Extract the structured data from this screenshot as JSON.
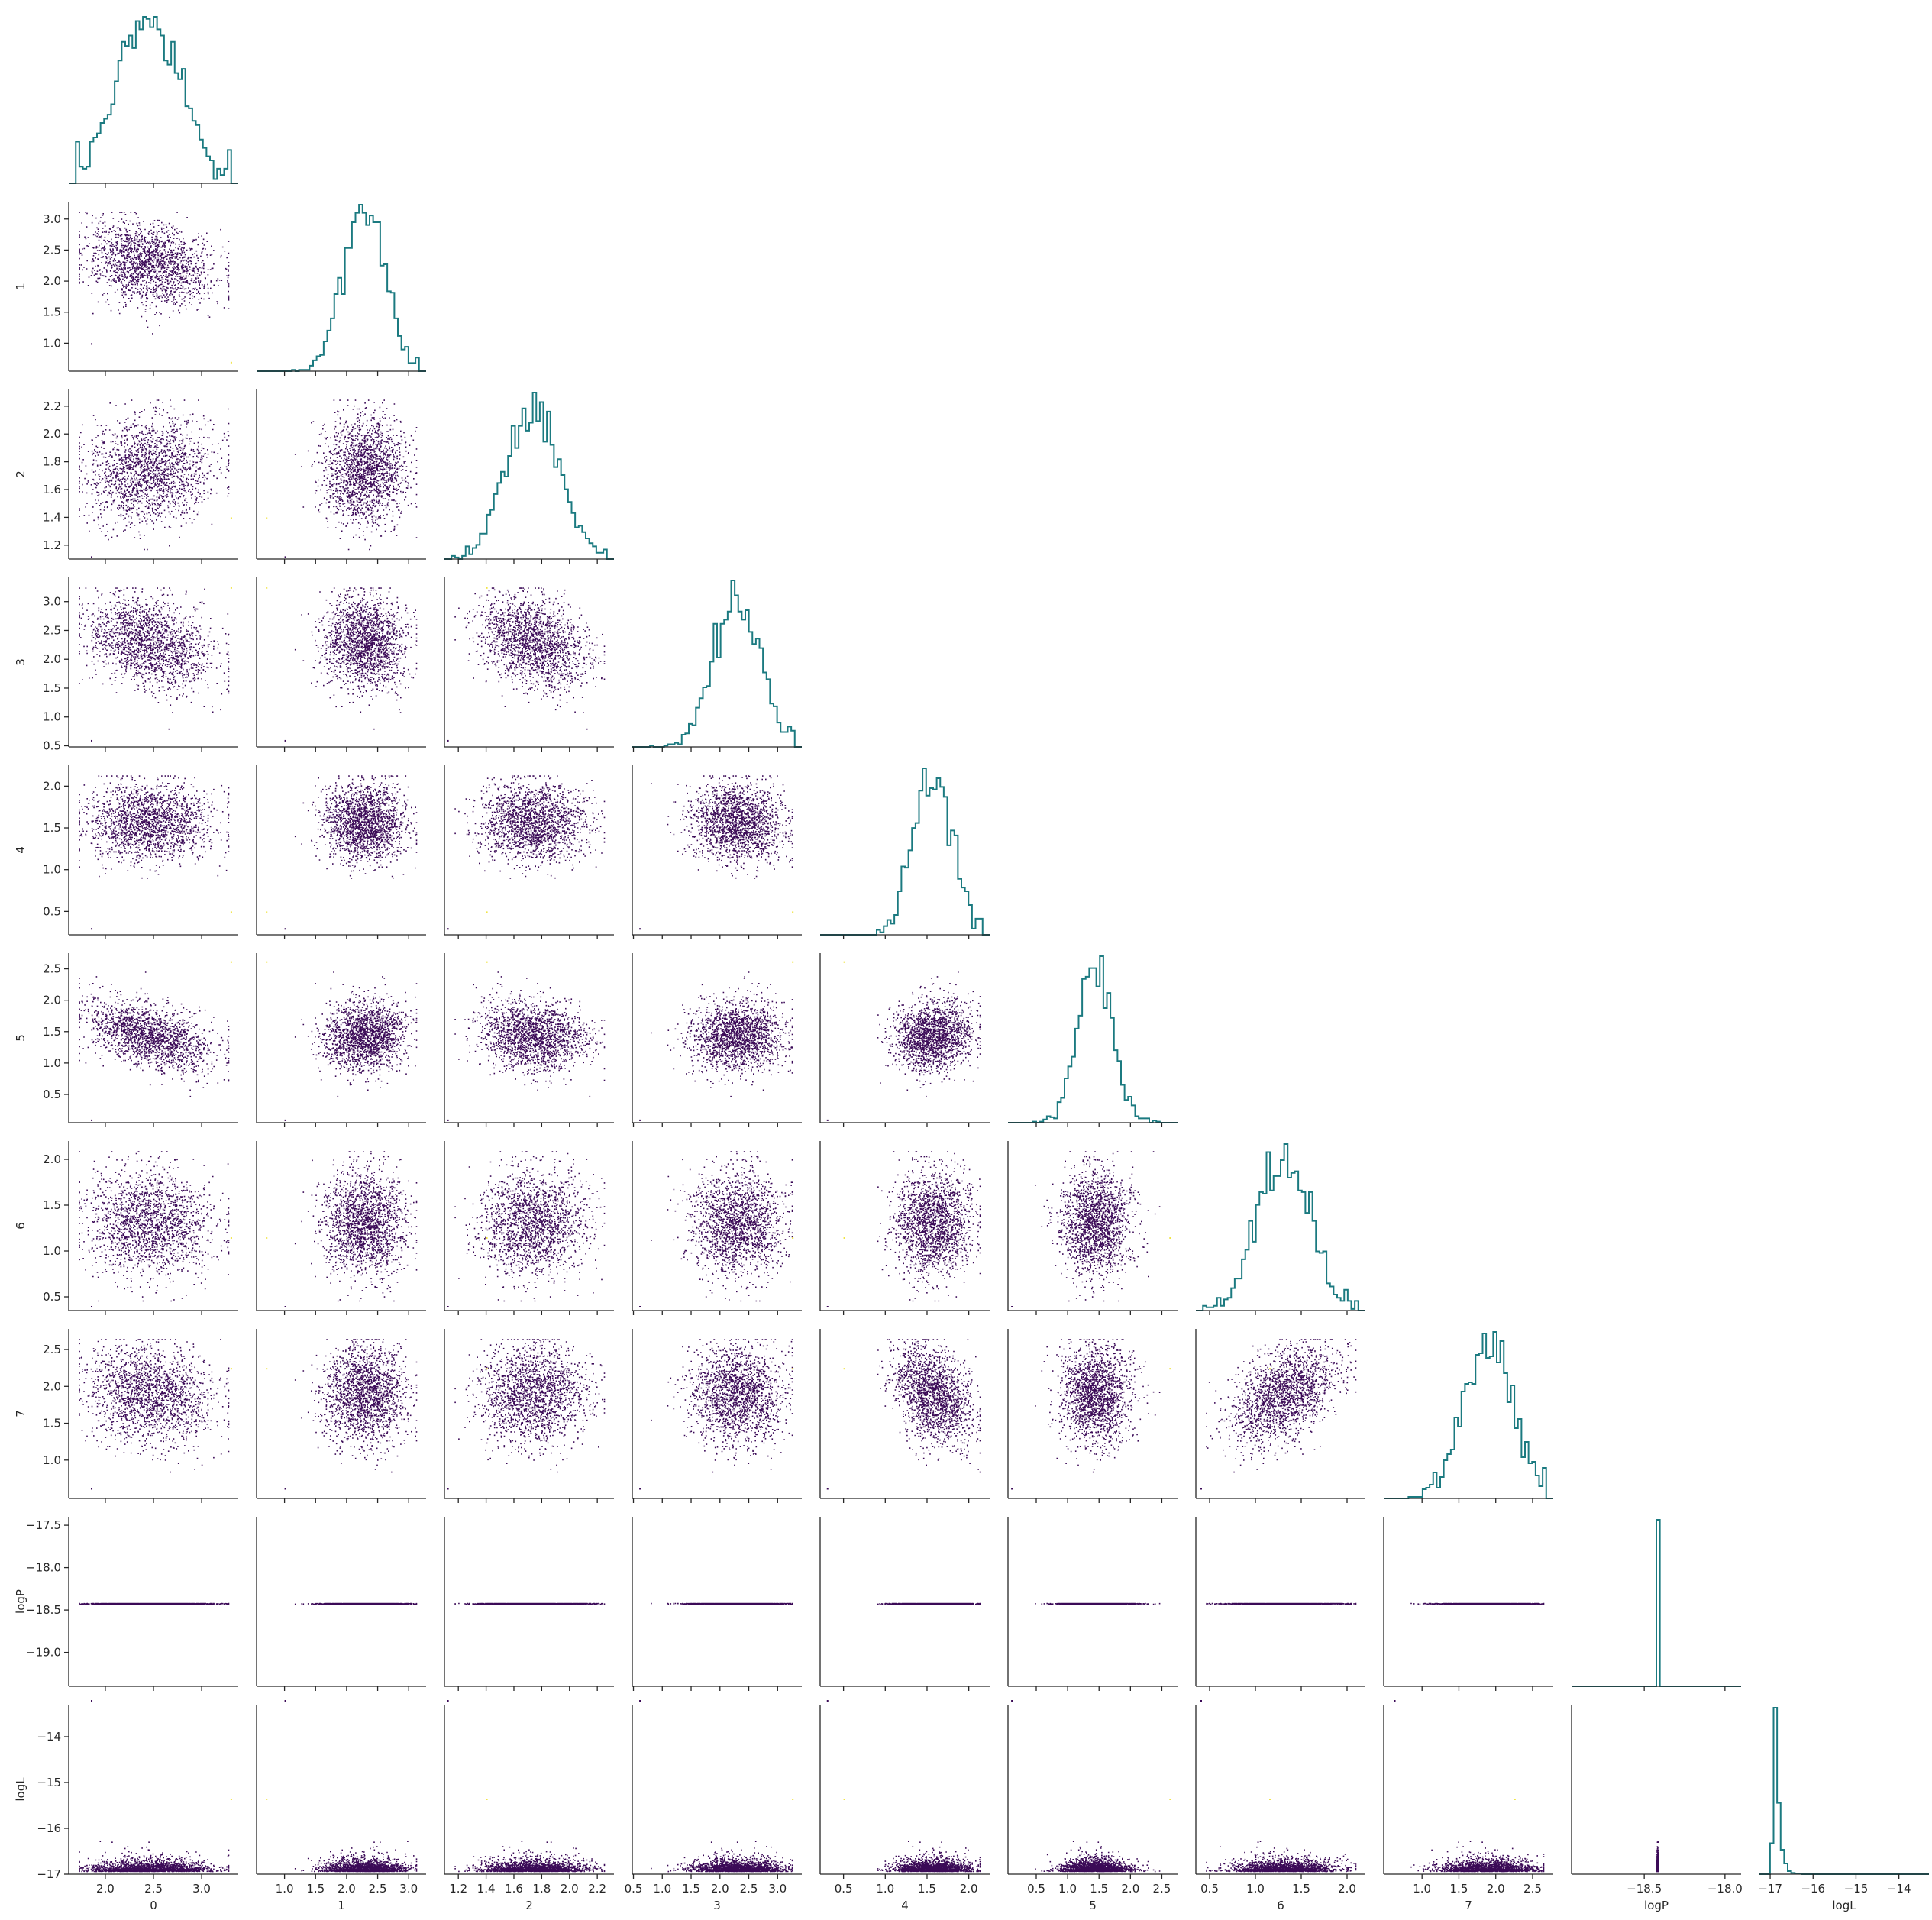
{
  "chart_data": {
    "type": "scatter",
    "layout": "corner-pairplot",
    "colors": {
      "histogram": "#1b7a80",
      "scatter": "#3b0a57",
      "scatter_high": "#f0e442",
      "axes": "#262626"
    },
    "grid": false,
    "legend": "none",
    "variables": [
      {
        "name": "0",
        "label": "0",
        "range": [
          1.62,
          3.38
        ],
        "ticks": [
          "2.0",
          "2.5",
          "3.0"
        ],
        "tick_values": [
          2.0,
          2.5,
          3.0
        ],
        "mean": 2.45,
        "sd": 0.32,
        "hist_peak": 2.5,
        "outliers": [
          1.85,
          3.3
        ]
      },
      {
        "name": "1",
        "label": "1",
        "range": [
          0.55,
          3.28
        ],
        "ticks": [
          "1.0",
          "1.5",
          "2.0",
          "2.5",
          "3.0"
        ],
        "tick_values": [
          1.0,
          1.5,
          2.0,
          2.5,
          3.0
        ],
        "mean": 2.28,
        "sd": 0.32,
        "hist_peak": 2.5,
        "outliers": [
          1.0,
          0.7
        ]
      },
      {
        "name": "2",
        "label": "2",
        "range": [
          1.1,
          2.32
        ],
        "ticks": [
          "1.2",
          "1.4",
          "1.6",
          "1.8",
          "2.0",
          "2.2"
        ],
        "tick_values": [
          1.2,
          1.4,
          1.6,
          1.8,
          2.0,
          2.2
        ],
        "mean": 1.73,
        "sd": 0.19,
        "hist_peak": 1.75,
        "outliers": [
          1.12,
          1.4
        ]
      },
      {
        "name": "3",
        "label": "3",
        "range": [
          0.48,
          3.42
        ],
        "ticks": [
          "0.5",
          "1.0",
          "1.5",
          "2.0",
          "2.5",
          "3.0"
        ],
        "tick_values": [
          0.5,
          1.0,
          1.5,
          2.0,
          2.5,
          3.0
        ],
        "mean": 2.3,
        "sd": 0.4,
        "hist_peak": 2.4,
        "outliers": [
          0.6,
          3.25
        ]
      },
      {
        "name": "4",
        "label": "4",
        "range": [
          0.22,
          2.25
        ],
        "ticks": [
          "0.5",
          "1.0",
          "1.5",
          "2.0"
        ],
        "tick_values": [
          0.5,
          1.0,
          1.5,
          2.0
        ],
        "mean": 1.57,
        "sd": 0.23,
        "hist_peak": 1.55,
        "outliers": [
          0.3,
          0.5
        ]
      },
      {
        "name": "5",
        "label": "5",
        "range": [
          0.05,
          2.75
        ],
        "ticks": [
          "0.5",
          "1.0",
          "1.5",
          "2.0",
          "2.5"
        ],
        "tick_values": [
          0.5,
          1.0,
          1.5,
          2.0,
          2.5
        ],
        "mean": 1.45,
        "sd": 0.28,
        "hist_peak": 1.5,
        "outliers": [
          0.1,
          2.62
        ]
      },
      {
        "name": "6",
        "label": "6",
        "range": [
          0.35,
          2.2
        ],
        "ticks": [
          "0.5",
          "1.0",
          "1.5",
          "2.0"
        ],
        "tick_values": [
          0.5,
          1.0,
          1.5,
          2.0
        ],
        "mean": 1.32,
        "sd": 0.28,
        "hist_peak": 1.4,
        "outliers": [
          0.4,
          1.15
        ]
      },
      {
        "name": "7",
        "label": "7",
        "range": [
          0.48,
          2.78
        ],
        "ticks": [
          "1.0",
          "1.5",
          "2.0",
          "2.5"
        ],
        "tick_values": [
          1.0,
          1.5,
          2.0,
          2.5
        ],
        "mean": 1.9,
        "sd": 0.33,
        "hist_peak": 2.0,
        "outliers": [
          0.62,
          2.25
        ]
      },
      {
        "name": "logP",
        "label": "logP",
        "range": [
          -19.4,
          -17.4
        ],
        "ticks": [
          "-17.5",
          "-18.0",
          "-18.5",
          "-19.0"
        ],
        "tick_values": [
          -17.5,
          -18.0,
          -18.5,
          -19.0
        ],
        "x_range": [
          -18.95,
          -17.9
        ],
        "x_ticks": [
          "-18.5",
          "-18.0"
        ],
        "x_tick_values": [
          -18.5,
          -18.0
        ],
        "mode": -18.42
      },
      {
        "name": "logL",
        "label": "logL",
        "range": [
          -17.0,
          -13.3
        ],
        "ticks": [
          "-14",
          "-15",
          "-16",
          "-17"
        ],
        "tick_values": [
          -14,
          -15,
          -16,
          -17
        ],
        "x_range": [
          -17.25,
          -13.3
        ],
        "x_ticks": [
          "-17",
          "-16",
          "-15",
          "-14"
        ],
        "x_tick_values": [
          -17,
          -16,
          -15,
          -14
        ],
        "mode": -16.85,
        "outliers": [
          -13.2,
          -15.35,
          -15.6,
          -15.7
        ]
      }
    ],
    "correlations": [
      [
        "0",
        "1",
        -0.25
      ],
      [
        "0",
        "2",
        0.12
      ],
      [
        "0",
        "3",
        -0.3
      ],
      [
        "0",
        "5",
        -0.45
      ],
      [
        "0",
        "6",
        -0.08
      ],
      [
        "0",
        "7",
        -0.15
      ],
      [
        "1",
        "3",
        -0.05
      ],
      [
        "1",
        "5",
        0.1
      ],
      [
        "2",
        "3",
        -0.3
      ],
      [
        "2",
        "5",
        -0.15
      ],
      [
        "3",
        "4",
        -0.1
      ],
      [
        "4",
        "5",
        0.1
      ],
      [
        "4",
        "7",
        -0.35
      ],
      [
        "6",
        "7",
        0.45
      ]
    ]
  }
}
